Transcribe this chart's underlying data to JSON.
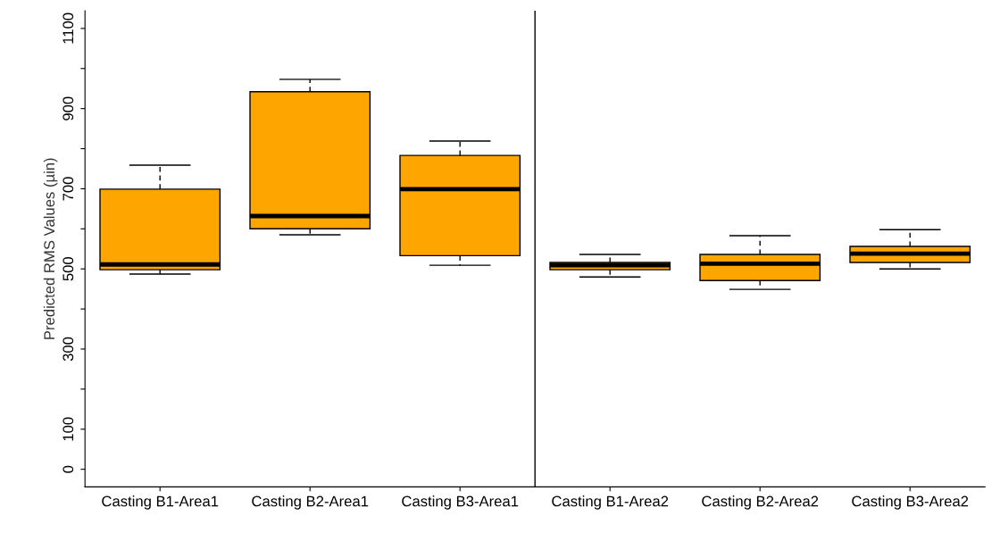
{
  "chart_data": {
    "type": "box",
    "ylabel": "Predicted RMS Values (µin)",
    "categories": [
      "Casting B1-Area1",
      "Casting B2-Area1",
      "Casting B3-Area1",
      "Casting B1-Area2",
      "Casting B2-Area2",
      "Casting B3-Area2"
    ],
    "boxes": [
      {
        "low": 487,
        "q1": 498,
        "median": 511,
        "q3": 699,
        "high": 759
      },
      {
        "low": 585,
        "q1": 600,
        "median": 632,
        "q3": 942,
        "high": 973
      },
      {
        "low": 509,
        "q1": 533,
        "median": 699,
        "q3": 783,
        "high": 819
      },
      {
        "low": 480,
        "q1": 498,
        "median": 509,
        "q3": 516,
        "high": 536
      },
      {
        "low": 449,
        "q1": 471,
        "median": 513,
        "q3": 536,
        "high": 583
      },
      {
        "low": 500,
        "q1": 516,
        "median": 538,
        "q3": 556,
        "high": 598
      }
    ],
    "color": "#ffa500",
    "ylim": [
      -44,
      1144
    ],
    "yticks": [
      0,
      100,
      {
        "value": 200,
        "label": null
      },
      300,
      {
        "value": 400,
        "label": null
      },
      500,
      {
        "value": 600,
        "label": null
      },
      700,
      {
        "value": 800,
        "label": null
      },
      900,
      {
        "value": 1000,
        "label": null
      },
      1100
    ],
    "grid": false
  }
}
